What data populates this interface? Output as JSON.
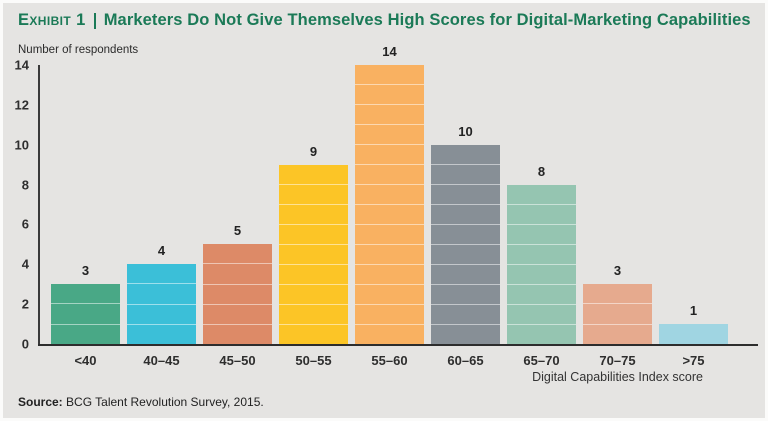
{
  "exhibit": {
    "label": "Exhibit 1",
    "title": "Marketers Do Not Give Themselves High Scores for Digital-Marketing Capabilities"
  },
  "chart_data": {
    "type": "bar",
    "title": "Marketers Do Not Give Themselves High Scores for Digital-Marketing Capabilities",
    "categories": [
      "<40",
      "40–45",
      "45–50",
      "50–55",
      "55–60",
      "60–65",
      "65–70",
      "70–75",
      ">75"
    ],
    "values": [
      3,
      4,
      5,
      9,
      14,
      10,
      8,
      3,
      1
    ],
    "bar_colors": [
      "#49a886",
      "#3bbfd8",
      "#dd8a67",
      "#fcc526",
      "#f9b161",
      "#878f96",
      "#95c5b1",
      "#e6aa8e",
      "#a0d5e2"
    ],
    "ylabel": "Number of respondents",
    "xlabel": "Digital Capabilities Index score",
    "yticks": [
      0,
      2,
      4,
      6,
      8,
      10,
      12,
      14
    ],
    "ylim": [
      0,
      14
    ],
    "grid": false,
    "legend": "none",
    "unit_dividers": true
  },
  "source": {
    "prefix": "Source:",
    "text": "BCG Talent Revolution Survey, 2015."
  },
  "colors": {
    "background": "#e5e4e2",
    "title_green": "#1b7a57",
    "axis": "#2d2d2d",
    "text": "#2b2b2b"
  }
}
